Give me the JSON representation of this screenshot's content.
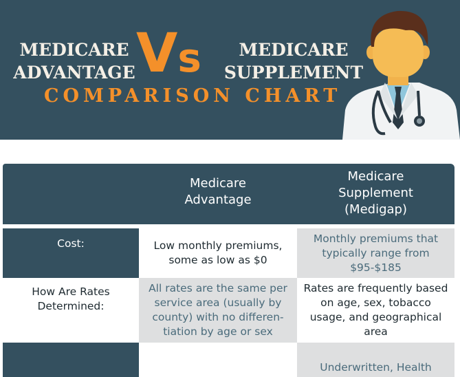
{
  "header": {
    "left_line1": "MEDICARE",
    "left_line2": "ADVANTAGE",
    "vs_v": "V",
    "vs_s": "s",
    "right_line1": "MEDICARE",
    "right_line2": "SUPPLEMENT",
    "subtitle": "COMPARISON CHART",
    "illustration": "doctor-with-stethoscope-icon"
  },
  "colors": {
    "navy": "#34505f",
    "orange": "#f4902a",
    "cream": "#f4efe6",
    "grey_cell": "#dedfe0"
  },
  "table": {
    "columns": [
      "",
      "Medicare\nAdvantage",
      "Medicare\nSupplement\n(Medigap)"
    ],
    "col1_line1": "Medicare",
    "col1_line2": "Advantage",
    "col2_line1": "Medicare",
    "col2_line2": "Supplement",
    "col2_line3": "(Medigap)",
    "rows": [
      {
        "label": "Cost:",
        "advantage": "Low monthly premiums, some as low as $0",
        "supplement": "Monthly premiums that typically range from $95-$185"
      },
      {
        "label": "How Are Rates Determined:",
        "advantage": "All rates are the same per service area (usually by county) with no differen- tiation by age or sex",
        "supplement": "Rates are frequently based on age, sex, tobacco usage, and geographical area"
      },
      {
        "label": "",
        "advantage": "",
        "supplement": "Underwritten, Health"
      }
    ]
  }
}
